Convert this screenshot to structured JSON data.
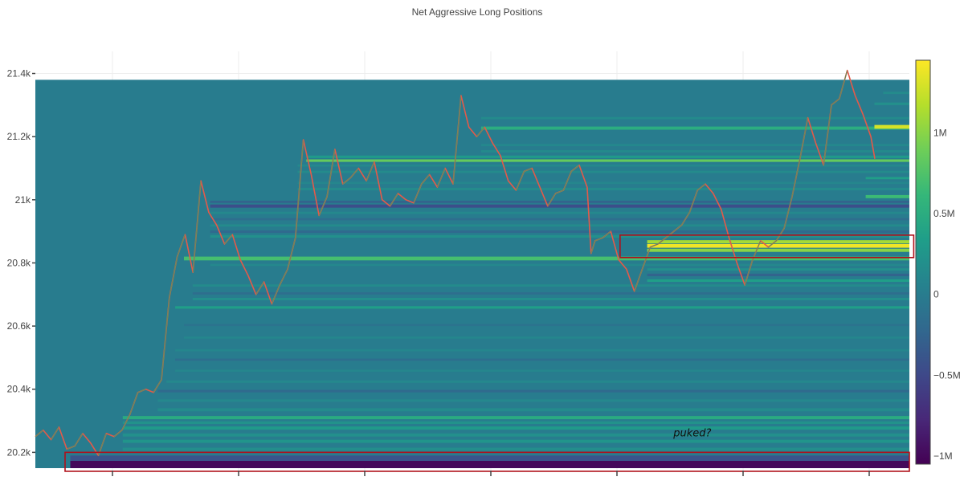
{
  "chart_data": {
    "type": "heatmap",
    "title": "Net Aggressive Long Positions",
    "xlabel": "",
    "ylabel": "",
    "ylim": [
      20145,
      21470
    ],
    "y_ticks": [
      {
        "value": 20200,
        "label": "20.2k"
      },
      {
        "value": 20400,
        "label": "20.4k"
      },
      {
        "value": 20600,
        "label": "20.6k"
      },
      {
        "value": 20800,
        "label": "20.8k"
      },
      {
        "value": 21000,
        "label": "21k"
      },
      {
        "value": 21200,
        "label": "21.2k"
      },
      {
        "value": 21400,
        "label": "21.4k"
      }
    ],
    "x_tick_count": 7,
    "grid": true,
    "colorscale": "viridis",
    "colorbar": {
      "range": [
        -1050000,
        1450000
      ],
      "ticks": [
        {
          "value": -1000000,
          "label": "−1M"
        },
        {
          "value": -500000,
          "label": "−0.5M"
        },
        {
          "value": 0,
          "label": "0"
        },
        {
          "value": 500000,
          "label": "0.5M"
        },
        {
          "value": 1000000,
          "label": "1M"
        }
      ]
    },
    "heatmap_price_range": [
      20150,
      21380
    ],
    "heatmap_background_value": 0,
    "heatmap_bands": [
      {
        "price_low": 20150,
        "price_high": 20173,
        "x_start": 0.04,
        "value": -1000000
      },
      {
        "price_low": 20173,
        "price_high": 20190,
        "x_start": 0.04,
        "value": -400000
      },
      {
        "price_low": 20205,
        "price_high": 20215,
        "x_start": 0.1,
        "value": 180000
      },
      {
        "price_low": 20230,
        "price_high": 20240,
        "x_start": 0.1,
        "value": 250000
      },
      {
        "price_low": 20250,
        "price_high": 20260,
        "x_start": 0.1,
        "value": 200000
      },
      {
        "price_low": 20272,
        "price_high": 20282,
        "x_start": 0.1,
        "value": 300000
      },
      {
        "price_low": 20290,
        "price_high": 20298,
        "x_start": 0.1,
        "value": 220000
      },
      {
        "price_low": 20305,
        "price_high": 20315,
        "x_start": 0.1,
        "value": 480000
      },
      {
        "price_low": 20330,
        "price_high": 20340,
        "x_start": 0.14,
        "value": 150000
      },
      {
        "price_low": 20360,
        "price_high": 20368,
        "x_start": 0.14,
        "value": 120000
      },
      {
        "price_low": 20390,
        "price_high": 20398,
        "x_start": 0.14,
        "value": -200000
      },
      {
        "price_low": 20420,
        "price_high": 20428,
        "x_start": 0.15,
        "value": 120000
      },
      {
        "price_low": 20455,
        "price_high": 20462,
        "x_start": 0.16,
        "value": 100000
      },
      {
        "price_low": 20490,
        "price_high": 20497,
        "x_start": 0.16,
        "value": -150000
      },
      {
        "price_low": 20520,
        "price_high": 20527,
        "x_start": 0.16,
        "value": 100000
      },
      {
        "price_low": 20560,
        "price_high": 20567,
        "x_start": 0.17,
        "value": 100000
      },
      {
        "price_low": 20600,
        "price_high": 20607,
        "x_start": 0.17,
        "value": -100000
      },
      {
        "price_low": 20655,
        "price_high": 20663,
        "x_start": 0.16,
        "value": 350000
      },
      {
        "price_low": 20682,
        "price_high": 20689,
        "x_start": 0.18,
        "value": 200000
      },
      {
        "price_low": 20700,
        "price_high": 20707,
        "x_start": 0.18,
        "value": -150000
      },
      {
        "price_low": 20725,
        "price_high": 20732,
        "x_start": 0.18,
        "value": 150000
      },
      {
        "price_low": 20740,
        "price_high": 20748,
        "x_start": 0.7,
        "value": 350000
      },
      {
        "price_low": 20758,
        "price_high": 20766,
        "x_start": 0.7,
        "value": -250000
      },
      {
        "price_low": 20776,
        "price_high": 20783,
        "x_start": 0.7,
        "value": 200000
      },
      {
        "price_low": 20790,
        "price_high": 20797,
        "x_start": 0.2,
        "value": 120000
      },
      {
        "price_low": 20808,
        "price_high": 20820,
        "x_start": 0.17,
        "value": 700000
      },
      {
        "price_low": 20835,
        "price_high": 20845,
        "x_start": 0.7,
        "value": 1000000
      },
      {
        "price_low": 20848,
        "price_high": 20860,
        "x_start": 0.7,
        "value": 1400000
      },
      {
        "price_low": 20862,
        "price_high": 20872,
        "x_start": 0.7,
        "value": 1100000
      },
      {
        "price_low": 20880,
        "price_high": 20888,
        "x_start": 0.2,
        "value": 200000
      },
      {
        "price_low": 20895,
        "price_high": 20903,
        "x_start": 0.2,
        "value": -200000
      },
      {
        "price_low": 20915,
        "price_high": 20922,
        "x_start": 0.2,
        "value": 150000
      },
      {
        "price_low": 20935,
        "price_high": 20942,
        "x_start": 0.2,
        "value": -150000
      },
      {
        "price_low": 20955,
        "price_high": 20962,
        "x_start": 0.2,
        "value": 120000
      },
      {
        "price_low": 20975,
        "price_high": 20985,
        "x_start": 0.2,
        "value": -450000
      },
      {
        "price_low": 20990,
        "price_high": 20997,
        "x_start": 0.2,
        "value": -250000
      },
      {
        "price_low": 21005,
        "price_high": 21015,
        "x_start": 0.95,
        "value": 650000
      },
      {
        "price_low": 21030,
        "price_high": 21038,
        "x_start": 0.3,
        "value": 150000
      },
      {
        "price_low": 21050,
        "price_high": 21057,
        "x_start": 0.3,
        "value": 100000
      },
      {
        "price_low": 21065,
        "price_high": 21072,
        "x_start": 0.95,
        "value": 350000
      },
      {
        "price_low": 21085,
        "price_high": 21092,
        "x_start": 0.3,
        "value": 150000
      },
      {
        "price_low": 21105,
        "price_high": 21112,
        "x_start": 0.3,
        "value": 120000
      },
      {
        "price_low": 21120,
        "price_high": 21128,
        "x_start": 0.31,
        "value": 850000
      },
      {
        "price_low": 21132,
        "price_high": 21140,
        "x_start": 0.31,
        "value": 300000
      },
      {
        "price_low": 21150,
        "price_high": 21157,
        "x_start": 0.51,
        "value": 150000
      },
      {
        "price_low": 21170,
        "price_high": 21177,
        "x_start": 0.51,
        "value": 120000
      },
      {
        "price_low": 21222,
        "price_high": 21232,
        "x_start": 0.51,
        "value": 500000
      },
      {
        "price_low": 21225,
        "price_high": 21237,
        "x_start": 0.96,
        "value": 1300000
      },
      {
        "price_low": 21255,
        "price_high": 21262,
        "x_start": 0.51,
        "value": 150000
      },
      {
        "price_low": 21300,
        "price_high": 21308,
        "x_start": 0.96,
        "value": 200000
      },
      {
        "price_low": 21335,
        "price_high": 21342,
        "x_start": 0.97,
        "value": 150000
      }
    ],
    "price_series": {
      "name": "",
      "color": "#e35a4a",
      "alt_color": "#3e9e5e",
      "points": [
        [
          0.0,
          20250
        ],
        [
          0.01,
          20270
        ],
        [
          0.02,
          20240
        ],
        [
          0.03,
          20280
        ],
        [
          0.04,
          20210
        ],
        [
          0.05,
          20220
        ],
        [
          0.06,
          20260
        ],
        [
          0.07,
          20230
        ],
        [
          0.08,
          20190
        ],
        [
          0.09,
          20260
        ],
        [
          0.1,
          20250
        ],
        [
          0.11,
          20270
        ],
        [
          0.12,
          20320
        ],
        [
          0.13,
          20390
        ],
        [
          0.14,
          20400
        ],
        [
          0.15,
          20390
        ],
        [
          0.16,
          20430
        ],
        [
          0.17,
          20690
        ],
        [
          0.18,
          20820
        ],
        [
          0.19,
          20890
        ],
        [
          0.2,
          20770
        ],
        [
          0.21,
          21060
        ],
        [
          0.22,
          20960
        ],
        [
          0.23,
          20920
        ],
        [
          0.24,
          20860
        ],
        [
          0.25,
          20890
        ],
        [
          0.26,
          20810
        ],
        [
          0.27,
          20760
        ],
        [
          0.28,
          20700
        ],
        [
          0.29,
          20740
        ],
        [
          0.3,
          20670
        ],
        [
          0.31,
          20730
        ],
        [
          0.32,
          20780
        ],
        [
          0.33,
          20880
        ],
        [
          0.34,
          21190
        ],
        [
          0.35,
          21080
        ],
        [
          0.36,
          20950
        ],
        [
          0.37,
          21010
        ],
        [
          0.38,
          21160
        ],
        [
          0.39,
          21050
        ],
        [
          0.4,
          21070
        ],
        [
          0.41,
          21100
        ],
        [
          0.42,
          21060
        ],
        [
          0.43,
          21120
        ],
        [
          0.44,
          21000
        ],
        [
          0.45,
          20980
        ],
        [
          0.46,
          21020
        ],
        [
          0.47,
          21000
        ],
        [
          0.48,
          20990
        ],
        [
          0.49,
          21050
        ],
        [
          0.5,
          21080
        ],
        [
          0.51,
          21040
        ],
        [
          0.52,
          21100
        ],
        [
          0.53,
          21050
        ],
        [
          0.54,
          21330
        ],
        [
          0.55,
          21230
        ],
        [
          0.56,
          21200
        ],
        [
          0.57,
          21230
        ],
        [
          0.58,
          21180
        ],
        [
          0.59,
          21140
        ],
        [
          0.6,
          21060
        ],
        [
          0.61,
          21030
        ],
        [
          0.62,
          21090
        ],
        [
          0.63,
          21100
        ],
        [
          0.64,
          21040
        ],
        [
          0.65,
          20980
        ],
        [
          0.66,
          21020
        ],
        [
          0.67,
          21030
        ],
        [
          0.68,
          21090
        ],
        [
          0.69,
          21110
        ],
        [
          0.7,
          21040
        ],
        [
          0.705,
          20830
        ],
        [
          0.71,
          20870
        ],
        [
          0.72,
          20880
        ],
        [
          0.73,
          20900
        ],
        [
          0.74,
          20810
        ],
        [
          0.75,
          20780
        ],
        [
          0.76,
          20710
        ],
        [
          0.77,
          20780
        ],
        [
          0.78,
          20850
        ],
        [
          0.79,
          20860
        ],
        [
          0.8,
          20880
        ],
        [
          0.81,
          20900
        ],
        [
          0.82,
          20920
        ],
        [
          0.83,
          20960
        ],
        [
          0.84,
          21030
        ],
        [
          0.85,
          21050
        ],
        [
          0.86,
          21020
        ],
        [
          0.87,
          20970
        ],
        [
          0.88,
          20880
        ],
        [
          0.89,
          20800
        ],
        [
          0.9,
          20730
        ],
        [
          0.91,
          20810
        ],
        [
          0.92,
          20870
        ],
        [
          0.93,
          20850
        ],
        [
          0.94,
          20870
        ],
        [
          0.95,
          20910
        ],
        [
          0.96,
          21010
        ],
        [
          0.97,
          21130
        ],
        [
          0.98,
          21260
        ],
        [
          0.99,
          21180
        ],
        [
          1.0,
          21110
        ],
        [
          1.01,
          21300
        ],
        [
          1.02,
          21320
        ],
        [
          1.03,
          21410
        ],
        [
          1.04,
          21330
        ],
        [
          1.05,
          21270
        ],
        [
          1.06,
          21200
        ],
        [
          1.065,
          21130
        ]
      ]
    },
    "annotation": {
      "text": "puked?",
      "x_frac": 0.73,
      "price": 20251
    },
    "highlight_boxes": [
      {
        "price_low": 20140,
        "price_high": 20200,
        "x_start": 0.034,
        "x_end": 1.0
      },
      {
        "price_low": 20817,
        "price_high": 20888,
        "x_start": 0.669,
        "x_end": 1.005
      }
    ]
  }
}
